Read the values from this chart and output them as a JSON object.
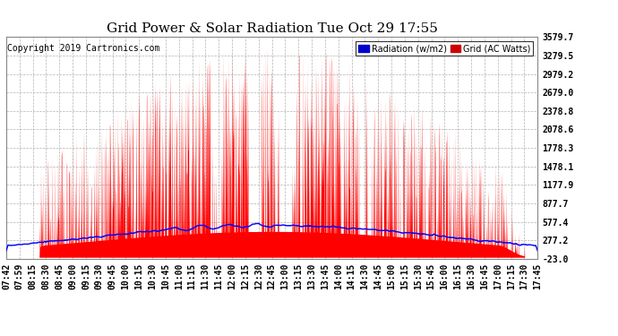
{
  "title": "Grid Power & Solar Radiation Tue Oct 29 17:55",
  "copyright": "Copyright 2019 Cartronics.com",
  "yticks": [
    3579.7,
    3279.5,
    2979.2,
    2679.0,
    2378.8,
    2078.6,
    1778.3,
    1478.1,
    1177.9,
    877.7,
    577.4,
    277.2,
    -23.0
  ],
  "ymin": -23.0,
  "ymax": 3579.7,
  "bg_color": "#ffffff",
  "grid_color": "#aaaaaa",
  "fill_color": "#ff0000",
  "line_color": "#0000ff",
  "title_fontsize": 11,
  "tick_fontsize": 7,
  "copyright_fontsize": 7,
  "xtick_labels": [
    "07:42",
    "07:59",
    "08:15",
    "08:30",
    "08:45",
    "09:00",
    "09:15",
    "09:30",
    "09:45",
    "10:00",
    "10:15",
    "10:30",
    "10:45",
    "11:00",
    "11:15",
    "11:30",
    "11:45",
    "12:00",
    "12:15",
    "12:30",
    "12:45",
    "13:00",
    "13:15",
    "13:30",
    "13:45",
    "14:00",
    "14:15",
    "14:30",
    "14:45",
    "15:00",
    "15:15",
    "15:30",
    "15:45",
    "16:00",
    "16:15",
    "16:30",
    "16:45",
    "17:00",
    "17:15",
    "17:30",
    "17:45"
  ]
}
